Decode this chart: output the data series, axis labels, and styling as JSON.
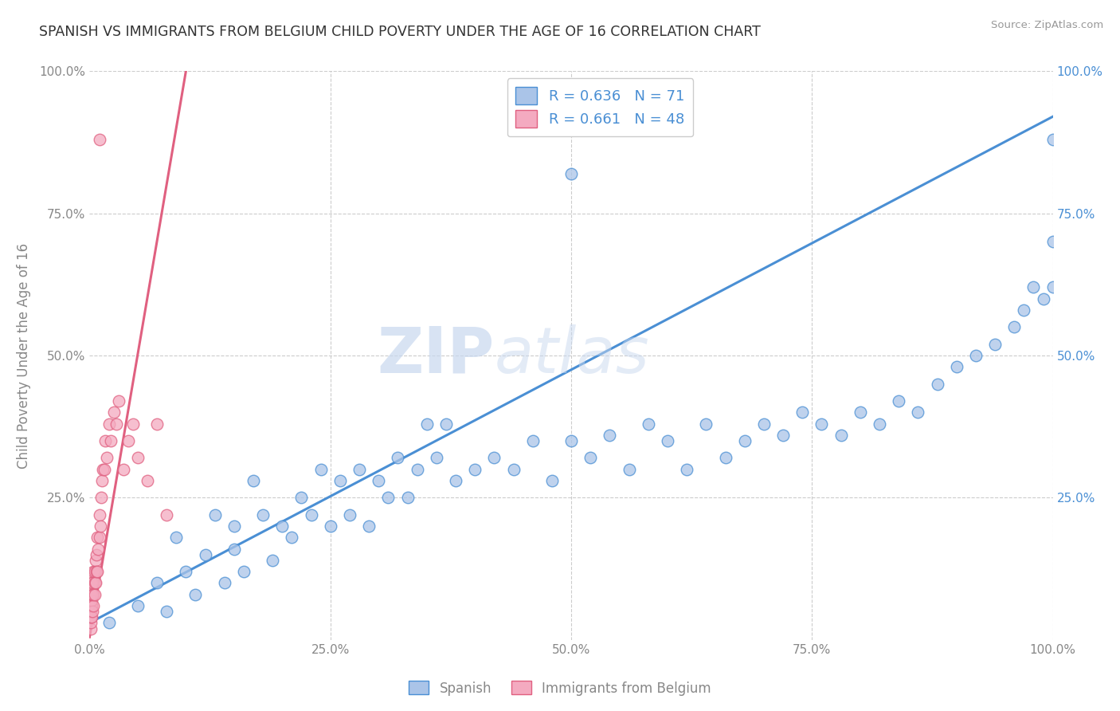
{
  "title": "SPANISH VS IMMIGRANTS FROM BELGIUM CHILD POVERTY UNDER THE AGE OF 16 CORRELATION CHART",
  "source": "Source: ZipAtlas.com",
  "ylabel": "Child Poverty Under the Age of 16",
  "watermark": "ZIPatlas",
  "xlim": [
    0,
    1.0
  ],
  "ylim": [
    0,
    1.0
  ],
  "xticks": [
    0.0,
    0.25,
    0.5,
    0.75,
    1.0
  ],
  "yticks": [
    0.0,
    0.25,
    0.5,
    0.75,
    1.0
  ],
  "xticklabels": [
    "0.0%",
    "25.0%",
    "50.0%",
    "75.0%",
    "100.0%"
  ],
  "yticklabels_left": [
    "",
    "25.0%",
    "50.0%",
    "75.0%",
    "100.0%"
  ],
  "yticklabels_right": [
    "",
    "25.0%",
    "50.0%",
    "75.0%",
    "100.0%"
  ],
  "blue_R": 0.636,
  "blue_N": 71,
  "pink_R": 0.661,
  "pink_N": 48,
  "blue_color": "#aac4e8",
  "pink_color": "#f4aac0",
  "blue_line_color": "#4a8fd4",
  "pink_line_color": "#e06080",
  "legend_label_blue": "Spanish",
  "legend_label_pink": "Immigrants from Belgium",
  "background_color": "#ffffff",
  "grid_color": "#cccccc",
  "title_color": "#333333",
  "axis_color": "#888888",
  "right_tick_color": "#4a8fd4",
  "blue_scatter_x": [
    0.02,
    0.05,
    0.07,
    0.08,
    0.09,
    0.1,
    0.11,
    0.12,
    0.13,
    0.14,
    0.15,
    0.15,
    0.16,
    0.17,
    0.18,
    0.19,
    0.2,
    0.21,
    0.22,
    0.23,
    0.24,
    0.25,
    0.26,
    0.27,
    0.28,
    0.29,
    0.3,
    0.31,
    0.32,
    0.33,
    0.34,
    0.35,
    0.36,
    0.37,
    0.38,
    0.4,
    0.42,
    0.44,
    0.46,
    0.48,
    0.5,
    0.52,
    0.54,
    0.56,
    0.58,
    0.6,
    0.62,
    0.64,
    0.66,
    0.68,
    0.7,
    0.72,
    0.74,
    0.76,
    0.78,
    0.8,
    0.82,
    0.84,
    0.86,
    0.88,
    0.9,
    0.92,
    0.94,
    0.96,
    0.97,
    0.98,
    0.99,
    1.0,
    1.0,
    1.0,
    0.5
  ],
  "blue_scatter_y": [
    0.03,
    0.06,
    0.1,
    0.05,
    0.18,
    0.12,
    0.08,
    0.15,
    0.22,
    0.1,
    0.16,
    0.2,
    0.12,
    0.28,
    0.22,
    0.14,
    0.2,
    0.18,
    0.25,
    0.22,
    0.3,
    0.2,
    0.28,
    0.22,
    0.3,
    0.2,
    0.28,
    0.25,
    0.32,
    0.25,
    0.3,
    0.38,
    0.32,
    0.38,
    0.28,
    0.3,
    0.32,
    0.3,
    0.35,
    0.28,
    0.35,
    0.32,
    0.36,
    0.3,
    0.38,
    0.35,
    0.3,
    0.38,
    0.32,
    0.35,
    0.38,
    0.36,
    0.4,
    0.38,
    0.36,
    0.4,
    0.38,
    0.42,
    0.4,
    0.45,
    0.48,
    0.5,
    0.52,
    0.55,
    0.58,
    0.62,
    0.6,
    0.62,
    0.7,
    0.88,
    0.82
  ],
  "pink_scatter_x": [
    0.001,
    0.001,
    0.001,
    0.001,
    0.001,
    0.002,
    0.002,
    0.002,
    0.002,
    0.002,
    0.003,
    0.003,
    0.003,
    0.004,
    0.004,
    0.004,
    0.005,
    0.005,
    0.005,
    0.006,
    0.006,
    0.007,
    0.007,
    0.008,
    0.008,
    0.009,
    0.01,
    0.01,
    0.011,
    0.012,
    0.013,
    0.014,
    0.015,
    0.016,
    0.018,
    0.02,
    0.022,
    0.025,
    0.028,
    0.03,
    0.035,
    0.04,
    0.045,
    0.05,
    0.06,
    0.07,
    0.08,
    0.01
  ],
  "pink_scatter_y": [
    0.02,
    0.03,
    0.04,
    0.05,
    0.06,
    0.04,
    0.06,
    0.07,
    0.08,
    0.1,
    0.05,
    0.08,
    0.1,
    0.06,
    0.08,
    0.12,
    0.08,
    0.1,
    0.12,
    0.1,
    0.14,
    0.12,
    0.15,
    0.12,
    0.18,
    0.16,
    0.18,
    0.22,
    0.2,
    0.25,
    0.28,
    0.3,
    0.3,
    0.35,
    0.32,
    0.38,
    0.35,
    0.4,
    0.38,
    0.42,
    0.3,
    0.35,
    0.38,
    0.32,
    0.28,
    0.38,
    0.22,
    0.88
  ],
  "blue_line_x": [
    0.0,
    1.0
  ],
  "blue_line_y": [
    0.03,
    0.92
  ],
  "pink_line_x": [
    0.0,
    0.1
  ],
  "pink_line_y": [
    0.005,
    1.0
  ]
}
